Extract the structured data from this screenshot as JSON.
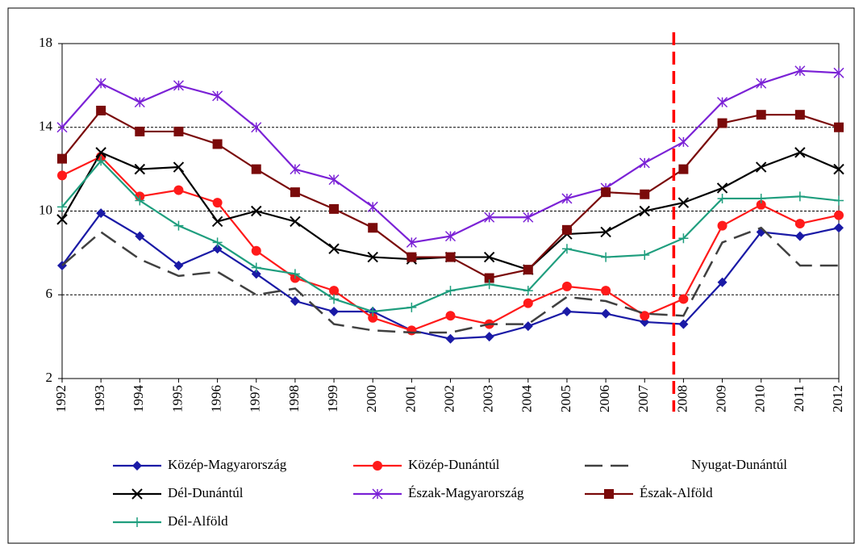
{
  "chart_data": {
    "type": "line",
    "x": [
      1992,
      1993,
      1994,
      1995,
      1996,
      1997,
      1998,
      1999,
      2000,
      2001,
      2002,
      2003,
      2004,
      2005,
      2006,
      2007,
      2008,
      2009,
      2010,
      2011,
      2012
    ],
    "xlim": [
      1992,
      2012
    ],
    "ylim": [
      2,
      18
    ],
    "yticks": [
      2,
      6,
      10,
      14,
      18
    ],
    "grid": true,
    "series": [
      {
        "name": "Közép-Magyarország",
        "color": "#1a1aa6",
        "marker": "diamond",
        "values": [
          7.4,
          9.9,
          8.8,
          7.4,
          8.2,
          7.0,
          5.7,
          5.2,
          5.2,
          4.3,
          3.9,
          4.0,
          4.5,
          5.2,
          5.1,
          4.7,
          4.6,
          6.6,
          9.0,
          8.8,
          9.2
        ]
      },
      {
        "name": "Közép-Dunántúl",
        "color": "#ff1a1a",
        "marker": "circle",
        "values": [
          11.7,
          12.6,
          10.7,
          11.0,
          10.4,
          8.1,
          6.8,
          6.2,
          4.9,
          4.3,
          5.0,
          4.6,
          5.6,
          6.4,
          6.2,
          5.0,
          5.8,
          9.3,
          10.3,
          9.4,
          9.8
        ]
      },
      {
        "name": "Nyugat-Dunántúl",
        "color": "#404040",
        "marker": "dash",
        "values": [
          7.4,
          9.0,
          7.7,
          6.9,
          7.1,
          6.0,
          6.3,
          4.6,
          4.3,
          4.2,
          4.2,
          4.6,
          4.6,
          5.9,
          5.7,
          5.1,
          5.0,
          8.5,
          9.2,
          7.4,
          7.4
        ]
      },
      {
        "name": "Dél-Dunántúl",
        "color": "#000000",
        "marker": "x",
        "values": [
          9.6,
          12.8,
          12.0,
          12.1,
          9.5,
          10.0,
          9.5,
          8.2,
          7.8,
          7.7,
          7.8,
          7.8,
          7.2,
          8.9,
          9.0,
          10.0,
          10.4,
          11.1,
          12.1,
          12.8,
          12.0
        ]
      },
      {
        "name": "Észak-Magyarország",
        "color": "#7b22d6",
        "marker": "star",
        "values": [
          14.0,
          16.1,
          15.2,
          16.0,
          15.5,
          14.0,
          12.0,
          11.5,
          10.2,
          8.5,
          8.8,
          9.7,
          9.7,
          10.6,
          11.1,
          12.3,
          13.3,
          15.2,
          16.1,
          16.7,
          16.6
        ]
      },
      {
        "name": "Észak-Alföld",
        "color": "#7a0a0a",
        "marker": "square",
        "values": [
          12.5,
          14.8,
          13.8,
          13.8,
          13.2,
          12.0,
          10.9,
          10.1,
          9.2,
          7.8,
          7.8,
          6.8,
          7.2,
          9.1,
          10.9,
          10.8,
          12.0,
          14.2,
          14.6,
          14.6,
          14.0
        ]
      },
      {
        "name": "Dél-Alföld",
        "color": "#1f9e7e",
        "marker": "plus",
        "values": [
          10.2,
          12.4,
          10.5,
          9.3,
          8.5,
          7.3,
          7.0,
          5.8,
          5.2,
          5.4,
          6.2,
          6.5,
          6.2,
          8.2,
          7.8,
          7.9,
          8.7,
          10.6,
          10.6,
          10.7,
          10.5
        ]
      }
    ],
    "vline": {
      "x": 2007.75,
      "color": "#ff0000"
    }
  }
}
